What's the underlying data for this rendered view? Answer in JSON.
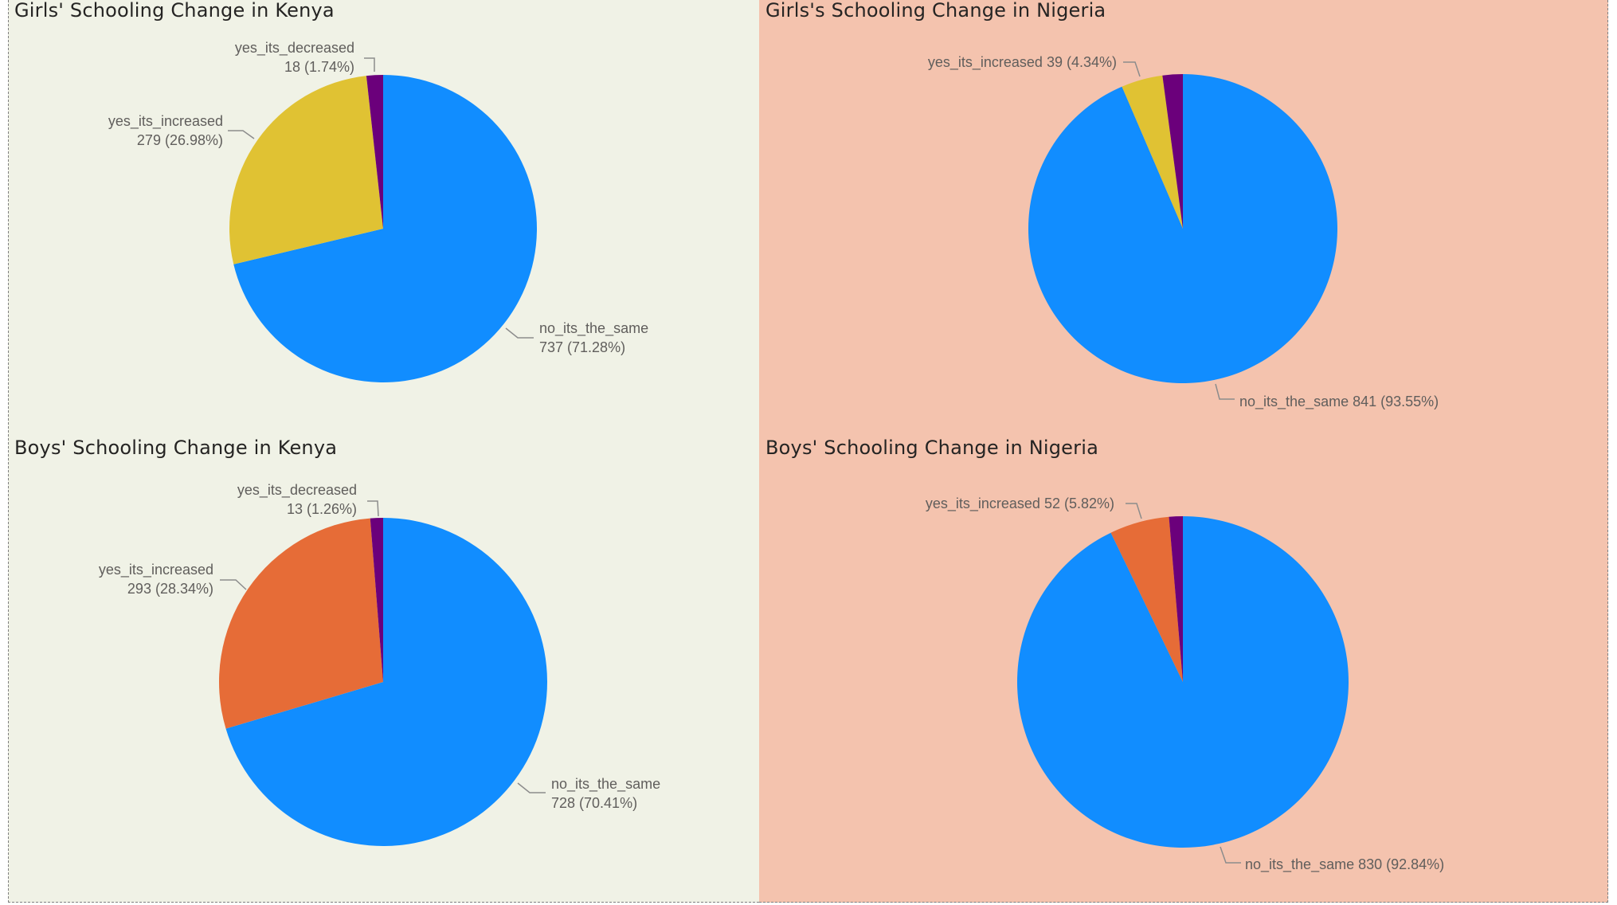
{
  "colors": {
    "no_its_the_same": "#118dff",
    "yes_its_decreased": "#6b007b",
    "girls_increased": "#e0c233",
    "boys_increased": "#e66c37",
    "kenya_background": "#f0f2e6",
    "nigeria_background": "#f4c3ae",
    "leader_line": "#8c8c8c",
    "label_text": "#605e5c"
  },
  "chart_data": [
    {
      "type": "pie",
      "title": "Girls' Schooling Change in Kenya",
      "series": [
        {
          "name": "no_its_the_same",
          "value": 737,
          "percent": "71.28%",
          "label_lines": [
            "no_its_the_same",
            "737 (71.28%)"
          ]
        },
        {
          "name": "yes_its_increased",
          "value": 279,
          "percent": "26.98%",
          "label_lines": [
            "yes_its_increased",
            "279 (26.98%)"
          ]
        },
        {
          "name": "yes_its_decreased",
          "value": 18,
          "percent": "1.74%",
          "label_lines": [
            "yes_its_decreased",
            "18 (1.74%)"
          ]
        }
      ]
    },
    {
      "type": "pie",
      "title": "Girls's Schooling Change in Nigeria",
      "series": [
        {
          "name": "no_its_the_same",
          "value": 841,
          "percent": "93.55%",
          "label_lines": [
            "no_its_the_same 841 (93.55%)"
          ]
        },
        {
          "name": "yes_its_increased",
          "value": 39,
          "percent": "4.34%",
          "label_lines": [
            "yes_its_increased 39 (4.34%)"
          ]
        },
        {
          "name": "yes_its_decreased",
          "value": 19,
          "percent": "2.11%",
          "label_lines": []
        }
      ]
    },
    {
      "type": "pie",
      "title": "Boys' Schooling Change in Kenya",
      "series": [
        {
          "name": "no_its_the_same",
          "value": 728,
          "percent": "70.41%",
          "label_lines": [
            "no_its_the_same",
            "728 (70.41%)"
          ]
        },
        {
          "name": "yes_its_increased",
          "value": 293,
          "percent": "28.34%",
          "label_lines": [
            "yes_its_increased",
            "293 (28.34%)"
          ]
        },
        {
          "name": "yes_its_decreased",
          "value": 13,
          "percent": "1.26%",
          "label_lines": [
            "yes_its_decreased",
            "13 (1.26%)"
          ]
        }
      ]
    },
    {
      "type": "pie",
      "title": "Boys' Schooling Change in Nigeria",
      "series": [
        {
          "name": "no_its_the_same",
          "value": 830,
          "percent": "92.84%",
          "label_lines": [
            "no_its_the_same 830 (92.84%)"
          ]
        },
        {
          "name": "yes_its_increased",
          "value": 52,
          "percent": "5.82%",
          "label_lines": [
            "yes_its_increased 52 (5.82%)"
          ]
        },
        {
          "name": "yes_its_decreased",
          "value": 12,
          "percent": "1.34%",
          "label_lines": []
        }
      ]
    }
  ]
}
